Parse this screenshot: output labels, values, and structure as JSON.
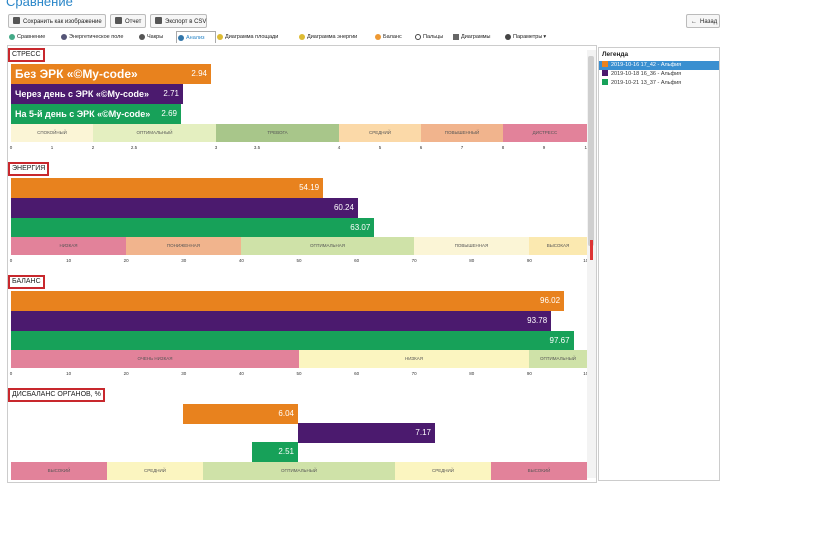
{
  "app": {
    "title": "Сравнение"
  },
  "toolbar": {
    "save_image": "Сохранить как изображение",
    "report": "Отчет",
    "export_csv": "Экспорт в CSV",
    "back": "Назад"
  },
  "tabs": [
    {
      "label": "Сравнение"
    },
    {
      "label": "Энергетическое поле"
    },
    {
      "label": "Чакры"
    },
    {
      "label": "Анализ"
    },
    {
      "label": "Диаграмма площади"
    },
    {
      "label": "Диаграмма энергии"
    },
    {
      "label": "Баланс"
    },
    {
      "label": "Пальцы"
    },
    {
      "label": "Диаграммы"
    },
    {
      "label": "Параметры"
    }
  ],
  "legend": {
    "title": "Легенда",
    "items": [
      {
        "label": "2019-10-16 17_42 - Альфия",
        "color": "#e8821e"
      },
      {
        "label": "2019-10-18 16_36 - Альфия",
        "color": "#4b1a6e"
      },
      {
        "label": "2019-10-21 13_37 - Альфия",
        "color": "#17a159"
      }
    ]
  },
  "colors": {
    "orange": "#e8821e",
    "purple": "#4b1a6e",
    "green": "#17a159",
    "highlight": "#c8282d",
    "accent": "#2a86c8"
  },
  "chart_data": [
    {
      "type": "bar",
      "title": "СТРЕСС",
      "xlim": [
        0,
        10
      ],
      "ticks": [
        "0",
        "1",
        "2",
        "2.5",
        "3",
        "3.5",
        "4",
        "5",
        "6",
        "7",
        "8",
        "9",
        "10"
      ],
      "zones": [
        "СПОКОЙНЫЙ",
        "ОПТИМАЛЬНЫЙ",
        "ТРЕВОГА",
        "СРЕДНИЙ",
        "ПОВЫШЕННЫЙ",
        "ДИСТРЕСС"
      ],
      "bar_labels": [
        "Без ЭРК «©My-code»",
        "Через день с ЭРК «©My-code»",
        "На 5-й день с ЭРК «©My-code»"
      ],
      "series": [
        {
          "name": "2019-10-16 17_42 - Альфия",
          "value": 2.94
        },
        {
          "name": "2019-10-18 16_36 - Альфия",
          "value": 2.71
        },
        {
          "name": "2019-10-21 13_37 - Альфия",
          "value": 2.69
        }
      ]
    },
    {
      "type": "bar",
      "title": "ЭНЕРГИЯ",
      "xlim": [
        0,
        100
      ],
      "ticks": [
        "0",
        "10",
        "20",
        "30",
        "40",
        "50",
        "60",
        "70",
        "80",
        "90",
        "100"
      ],
      "zones": [
        "НИЗКАЯ",
        "ПОНИЖЕННАЯ",
        "ОПТИМАЛЬНАЯ",
        "ПОВЫШЕННАЯ",
        "ВЫСОКАЯ"
      ],
      "series": [
        {
          "name": "2019-10-16 17_42 - Альфия",
          "value": 54.19
        },
        {
          "name": "2019-10-18 16_36 - Альфия",
          "value": 60.24
        },
        {
          "name": "2019-10-21 13_37 - Альфия",
          "value": 63.07
        }
      ]
    },
    {
      "type": "bar",
      "title": "БАЛАНС",
      "xlim": [
        0,
        100
      ],
      "ticks": [
        "0",
        "10",
        "20",
        "30",
        "40",
        "50",
        "60",
        "70",
        "80",
        "90",
        "100"
      ],
      "zones": [
        "ОЧЕНЬ НИЗКАЯ",
        "НИЗКАЯ",
        "ОПТИМАЛЬНЫЙ"
      ],
      "series": [
        {
          "name": "2019-10-16 17_42 - Альфия",
          "value": 96.02
        },
        {
          "name": "2019-10-18 16_36 - Альфия",
          "value": 93.78
        },
        {
          "name": "2019-10-21 13_37 - Альфия",
          "value": 97.67
        }
      ]
    },
    {
      "type": "bar",
      "title": "ДИСБАЛАНС ОРГАНОВ, %",
      "zones": [
        "ВЫСОКИЙ",
        "СРЕДНИЙ",
        "ОПТИМАЛЬНЫЙ",
        "СРЕДНИЙ",
        "ВЫСОКИЙ"
      ],
      "series": [
        {
          "name": "2019-10-16 17_42 - Альфия",
          "value": 6.04
        },
        {
          "name": "2019-10-18 16_36 - Альфия",
          "value": 7.17
        },
        {
          "name": "2019-10-21 13_37 - Альфия",
          "value": 2.51
        }
      ]
    }
  ]
}
